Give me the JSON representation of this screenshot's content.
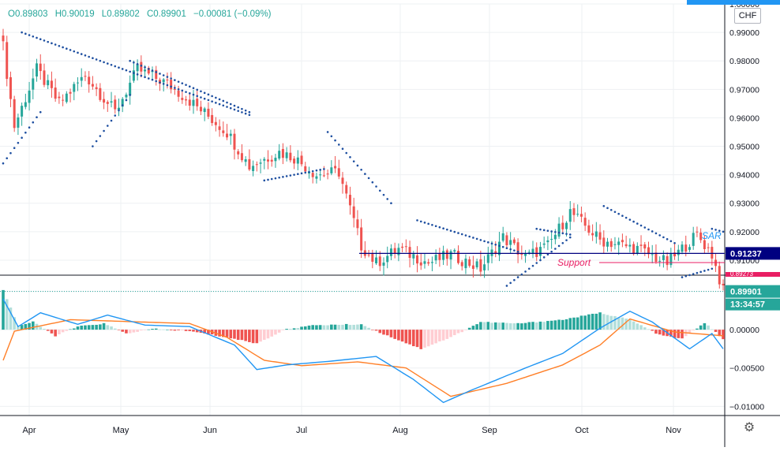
{
  "ohlc": {
    "open": "O0.89803",
    "high": "H0.90019",
    "low": "L0.89802",
    "close": "C0.89901",
    "change": "−0.00081 (−0.09%)"
  },
  "currency_badge": "CHF",
  "settings_icon": "gear-icon",
  "colors": {
    "up": "#26a69a",
    "down": "#ef5350",
    "sar": "#1e4fa0",
    "macd": "#2196f3",
    "signal": "#ff7f27",
    "hist_up_strong": "#26a69a",
    "hist_up_weak": "#b2dfdb",
    "hist_down_strong": "#ef5350",
    "hist_down_weak": "#ffcdd2",
    "resistance_line": "#000080",
    "support": "#e91e63",
    "price_tag": "#26a69a"
  },
  "chart_data": [
    {
      "type": "candlestick",
      "x_ticks": [
        "Apr",
        "May",
        "Jun",
        "Jul",
        "Aug",
        "Sep",
        "Oct",
        "Nov"
      ],
      "ylim": [
        0.905,
        1.0
      ],
      "y_ticks": [
        "1.00000",
        "0.99000",
        "0.98000",
        "0.97000",
        "0.96000",
        "0.95000",
        "0.94000",
        "0.93000",
        "0.92000",
        "0.91000"
      ],
      "grid": true,
      "anchors": [
        {
          "x": 0,
          "v": 0.985
        },
        {
          "x": 3,
          "v": 0.957
        },
        {
          "x": 9,
          "v": 0.977
        },
        {
          "x": 15,
          "v": 0.965
        },
        {
          "x": 22,
          "v": 0.975
        },
        {
          "x": 30,
          "v": 0.962
        },
        {
          "x": 36,
          "v": 0.977
        },
        {
          "x": 44,
          "v": 0.972
        },
        {
          "x": 50,
          "v": 0.966
        },
        {
          "x": 60,
          "v": 0.955
        },
        {
          "x": 66,
          "v": 0.943
        },
        {
          "x": 74,
          "v": 0.948
        },
        {
          "x": 78,
          "v": 0.946
        },
        {
          "x": 84,
          "v": 0.94
        },
        {
          "x": 90,
          "v": 0.941
        },
        {
          "x": 96,
          "v": 0.915
        },
        {
          "x": 100,
          "v": 0.909
        },
        {
          "x": 106,
          "v": 0.914
        },
        {
          "x": 114,
          "v": 0.909
        },
        {
          "x": 120,
          "v": 0.912
        },
        {
          "x": 128,
          "v": 0.907
        },
        {
          "x": 134,
          "v": 0.918
        },
        {
          "x": 140,
          "v": 0.911
        },
        {
          "x": 146,
          "v": 0.915
        },
        {
          "x": 152,
          "v": 0.927
        },
        {
          "x": 160,
          "v": 0.917
        },
        {
          "x": 170,
          "v": 0.914
        },
        {
          "x": 178,
          "v": 0.909
        },
        {
          "x": 186,
          "v": 0.919
        },
        {
          "x": 190,
          "v": 0.912
        },
        {
          "x": 193,
          "v": 0.899
        }
      ],
      "sar_segments": [
        {
          "from": 0,
          "to": 10,
          "v0": 0.944,
          "v1": 0.962
        },
        {
          "from": 5,
          "to": 66,
          "v0": 0.99,
          "v1": 0.961,
          "above": true
        },
        {
          "from": 24,
          "to": 34,
          "v0": 0.95,
          "v1": 0.968
        },
        {
          "from": 34,
          "to": 66,
          "v0": 0.98,
          "v1": 0.962
        },
        {
          "from": 70,
          "to": 86,
          "v0": 0.938,
          "v1": 0.942
        },
        {
          "from": 87,
          "to": 104,
          "v0": 0.955,
          "v1": 0.93
        },
        {
          "from": 111,
          "to": 138,
          "v0": 0.924,
          "v1": 0.913
        },
        {
          "from": 135,
          "to": 152,
          "v0": 0.901,
          "v1": 0.918
        },
        {
          "from": 143,
          "to": 152,
          "v0": 0.921,
          "v1": 0.919
        },
        {
          "from": 161,
          "to": 180,
          "v0": 0.929,
          "v1": 0.916
        },
        {
          "from": 182,
          "to": 190,
          "v0": 0.904,
          "v1": 0.907
        },
        {
          "from": 190,
          "to": 193,
          "v0": 0.921,
          "v1": 0.92
        }
      ],
      "sar_label": "SAR",
      "resistance_value": 0.91237,
      "resistance_label": "0.91237",
      "last_price_label": "0.89901",
      "countdown_label": "13:34:57",
      "support_label": "Support",
      "bottom_price_label": "0.89273"
    },
    {
      "type": "macd",
      "ylim": [
        -0.0112,
        0.0068
      ],
      "y_ticks": [
        "0.00500",
        "0.00000",
        "−0.00500",
        "−0.01000"
      ],
      "macd_anchors": [
        {
          "x": 0,
          "v": 0.004
        },
        {
          "x": 4,
          "v": 0.0004
        },
        {
          "x": 10,
          "v": 0.0022
        },
        {
          "x": 20,
          "v": 0.0007
        },
        {
          "x": 28,
          "v": 0.0019
        },
        {
          "x": 38,
          "v": 0.0006
        },
        {
          "x": 50,
          "v": 0.0004
        },
        {
          "x": 62,
          "v": -0.002
        },
        {
          "x": 68,
          "v": -0.0052
        },
        {
          "x": 76,
          "v": -0.0046
        },
        {
          "x": 88,
          "v": -0.0041
        },
        {
          "x": 100,
          "v": -0.0035
        },
        {
          "x": 110,
          "v": -0.0065
        },
        {
          "x": 118,
          "v": -0.0095
        },
        {
          "x": 125,
          "v": -0.008
        },
        {
          "x": 140,
          "v": -0.005
        },
        {
          "x": 150,
          "v": -0.0031
        },
        {
          "x": 160,
          "v": 0.0002
        },
        {
          "x": 168,
          "v": 0.0024
        },
        {
          "x": 174,
          "v": 0.001
        },
        {
          "x": 184,
          "v": -0.0025
        },
        {
          "x": 190,
          "v": -0.0005
        },
        {
          "x": 193,
          "v": -0.0025
        }
      ],
      "signal_anchors": [
        {
          "x": 0,
          "v": -0.004
        },
        {
          "x": 3,
          "v": -0.0002
        },
        {
          "x": 18,
          "v": 0.0013
        },
        {
          "x": 50,
          "v": 0.0008
        },
        {
          "x": 60,
          "v": -0.001
        },
        {
          "x": 70,
          "v": -0.004
        },
        {
          "x": 80,
          "v": -0.0047
        },
        {
          "x": 95,
          "v": -0.0042
        },
        {
          "x": 108,
          "v": -0.005
        },
        {
          "x": 120,
          "v": -0.0087
        },
        {
          "x": 135,
          "v": -0.007
        },
        {
          "x": 150,
          "v": -0.0046
        },
        {
          "x": 160,
          "v": -0.002
        },
        {
          "x": 168,
          "v": 0.0014
        },
        {
          "x": 180,
          "v": -0.0003
        },
        {
          "x": 193,
          "v": -0.0008
        }
      ],
      "hist_anchors": [
        {
          "x": 0,
          "v": 0.0052
        },
        {
          "x": 4,
          "v": 0.0005
        },
        {
          "x": 8,
          "v": 0.001
        },
        {
          "x": 14,
          "v": -0.0008
        },
        {
          "x": 20,
          "v": 0.0004
        },
        {
          "x": 27,
          "v": 0.0008
        },
        {
          "x": 33,
          "v": -0.0005
        },
        {
          "x": 40,
          "v": 0.0001
        },
        {
          "x": 50,
          "v": -0.0002
        },
        {
          "x": 60,
          "v": -0.001
        },
        {
          "x": 68,
          "v": -0.0018
        },
        {
          "x": 76,
          "v": 0.0001
        },
        {
          "x": 84,
          "v": 0.0006
        },
        {
          "x": 96,
          "v": 0.0007
        },
        {
          "x": 100,
          "v": -0.0002
        },
        {
          "x": 112,
          "v": -0.0025
        },
        {
          "x": 120,
          "v": -0.001
        },
        {
          "x": 128,
          "v": 0.001
        },
        {
          "x": 138,
          "v": 0.0008
        },
        {
          "x": 150,
          "v": 0.0013
        },
        {
          "x": 160,
          "v": 0.0022
        },
        {
          "x": 168,
          "v": 0.0013
        },
        {
          "x": 176,
          "v": -0.0007
        },
        {
          "x": 182,
          "v": -0.0012
        },
        {
          "x": 188,
          "v": 0.0009
        },
        {
          "x": 193,
          "v": -0.0012
        }
      ]
    }
  ]
}
